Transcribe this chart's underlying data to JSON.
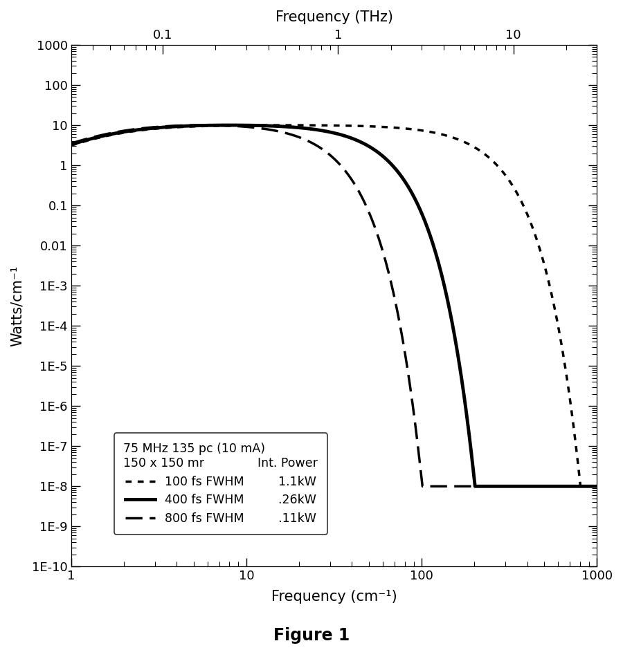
{
  "title_bottom": "Frequency (cm⁻¹)",
  "title_top": "Frequency (THz)",
  "ylabel": "Watts/cm⁻¹",
  "figure_title": "Figure 1",
  "xlim": [
    1,
    1000
  ],
  "ylim": [
    1e-10,
    1000
  ],
  "legend_header1": "75 MHz 135 pc (10 mA)",
  "legend_header2": "150 x 150 mr",
  "legend_col_header": "Int. Power",
  "curves": [
    {
      "label": "100 fs FWHM",
      "power_label": "1.1kW",
      "fwhm_fs": 100,
      "style": "dotted",
      "color": "black",
      "linewidth": 2.5,
      "amplitude": 10.0,
      "cutoff_cm": 333.0
    },
    {
      "label": "400 fs FWHM",
      "power_label": ".26kW",
      "fwhm_fs": 400,
      "style": "solid",
      "color": "black",
      "linewidth": 3.5,
      "amplitude": 10.0,
      "cutoff_cm": 83.0
    },
    {
      "label": "800 fs FWHM",
      "power_label": ".11kW",
      "fwhm_fs": 800,
      "style": "dashed",
      "color": "black",
      "linewidth": 2.5,
      "amplitude": 10.0,
      "cutoff_cm": 41.5
    }
  ],
  "noise_floor": 1e-08,
  "low_freq_value": 3.0,
  "background_color": "white"
}
